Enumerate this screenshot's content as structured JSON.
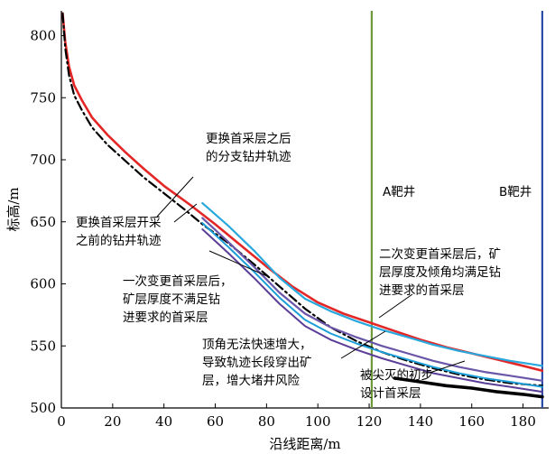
{
  "chart_data": {
    "type": "line",
    "xlabel": "沿线距离/m",
    "ylabel": "标高/m",
    "xlim": [
      0,
      190
    ],
    "ylim": [
      500,
      820
    ],
    "xticks": [
      0,
      20,
      40,
      60,
      80,
      100,
      120,
      140,
      160,
      180
    ],
    "yticks": [
      500,
      550,
      600,
      650,
      700,
      750,
      800
    ],
    "grid": false,
    "verticals": [
      {
        "x": 121,
        "color": "#6e9a3a",
        "label": "A靶井"
      },
      {
        "x": 187.5,
        "color": "#2a4da8",
        "label": "B靶井"
      }
    ],
    "series": [
      {
        "color": "#e32626",
        "width": 2.6,
        "dash": "",
        "x": [
          0.5,
          1.5,
          3,
          5,
          8,
          12,
          18,
          25,
          32,
          40,
          50,
          60,
          70,
          80,
          90,
          100,
          110,
          120,
          130,
          140,
          150,
          160,
          170,
          180,
          187.5
        ],
        "y": [
          818,
          795,
          775,
          760,
          748,
          734,
          720,
          706,
          693,
          679,
          664,
          648,
          631,
          614,
          598,
          585,
          576,
          569,
          562,
          555,
          549,
          544,
          539,
          534,
          530
        ]
      },
      {
        "color": "#000000",
        "width": 2.2,
        "dash": "10,4,2,4",
        "x": [
          0.5,
          1.5,
          3,
          5,
          8,
          12,
          18,
          25,
          32,
          40,
          48,
          55,
          65,
          75,
          85,
          95,
          105,
          115,
          125,
          135,
          145,
          155,
          165,
          175,
          187.5
        ],
        "y": [
          818,
          790,
          768,
          752,
          740,
          726,
          712,
          699,
          686,
          673,
          660,
          648,
          633,
          616,
          598,
          580,
          565,
          554,
          545,
          538,
          532,
          527,
          523,
          520,
          518
        ]
      },
      {
        "color": "#29a8de",
        "width": 2.2,
        "dash": "",
        "x": [
          55,
          65,
          75,
          85,
          95,
          105,
          115,
          125,
          135,
          145,
          155,
          165,
          175,
          187.5
        ],
        "y": [
          665,
          647,
          627,
          605,
          588,
          578,
          570,
          563,
          557,
          551,
          546,
          542,
          538,
          534
        ]
      },
      {
        "color": "#6a55a8",
        "width": 2.2,
        "dash": "",
        "x": [
          55,
          65,
          75,
          85,
          95,
          105,
          115,
          125,
          135,
          145,
          155,
          165,
          175,
          187.5
        ],
        "y": [
          653,
          634,
          614,
          593,
          576,
          565,
          557,
          550,
          544,
          538,
          533,
          529,
          526,
          522
        ]
      },
      {
        "color": "#1c9ed8",
        "width": 2.0,
        "dash": "",
        "x": [
          55,
          65,
          75,
          85,
          95,
          105,
          115,
          125,
          135,
          145,
          155,
          165,
          175,
          187.5
        ],
        "y": [
          649,
          630,
          610,
          589,
          571,
          560,
          552,
          545,
          539,
          533,
          528,
          524,
          521,
          517
        ]
      },
      {
        "color": "#5a3d96",
        "width": 2.0,
        "dash": "",
        "x": [
          55,
          65,
          75,
          85,
          95,
          105,
          115,
          125,
          135,
          145,
          155,
          165,
          175,
          187.5
        ],
        "y": [
          644,
          625,
          605,
          584,
          566,
          555,
          547,
          540,
          534,
          528,
          524,
          520,
          517,
          513
        ]
      },
      {
        "color": "#000000",
        "width": 3.6,
        "dash": "",
        "x": [
          130,
          140,
          150,
          160,
          170,
          180,
          187.5
        ],
        "y": [
          524,
          521,
          518,
          516,
          513,
          511,
          509
        ]
      }
    ],
    "annotations": [
      {
        "lines": [
          "更换首采层之后",
          "的分支钻井轨迹"
        ],
        "anchor": "start"
      },
      {
        "lines": [
          "更换首采层开采",
          "之前的钻井轨迹"
        ],
        "anchor": "start"
      },
      {
        "lines": [
          "一次变更首采层后，",
          "矿层厚度不满足钻",
          "进要求的首采层"
        ],
        "anchor": "start"
      },
      {
        "lines": [
          "二次变更首采层后，矿",
          "层厚度及倾角均满足钻",
          "进要求的首采层"
        ],
        "anchor": "start"
      },
      {
        "lines": [
          "顶角无法快速增大，",
          "导致轨迹长段穿出矿",
          "层，增大堵井风险"
        ],
        "anchor": "start"
      },
      {
        "lines": [
          "被尖灭的初步",
          "设计首采层"
        ],
        "anchor": "start"
      }
    ]
  }
}
